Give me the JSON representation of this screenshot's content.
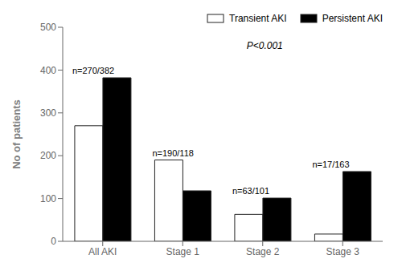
{
  "chart_data": {
    "type": "bar",
    "categories": [
      "All AKI",
      "Stage 1",
      "Stage 2",
      "Stage 3"
    ],
    "series": [
      {
        "name": "Transient AKI",
        "color": "#ffffff",
        "values": [
          270,
          190,
          63,
          17
        ]
      },
      {
        "name": "Persistent AKI",
        "color": "#000000",
        "values": [
          382,
          118,
          101,
          163
        ]
      }
    ],
    "annotations": [
      {
        "category": "All AKI",
        "text": "n=270/382"
      },
      {
        "category": "Stage 1",
        "text": "n=190/118"
      },
      {
        "category": "Stage 2",
        "text": "n=63/101"
      },
      {
        "category": "Stage 3",
        "text": "n=17/163"
      },
      {
        "text": "P<0.001"
      }
    ],
    "ylabel": "No of patients",
    "ylim": [
      0,
      500
    ],
    "yticks": [
      0,
      100,
      200,
      300,
      400,
      500
    ],
    "legend": "upper right",
    "grid": false
  }
}
